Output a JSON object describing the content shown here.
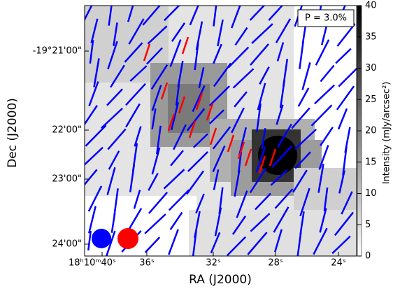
{
  "chart_data": {
    "type": "image",
    "xlabel": "RA (J2000)",
    "ylabel": "Dec (J2000)",
    "xtick_labels": [
      "18ʰ10ᵐ40ˢ",
      "36ˢ",
      "32ˢ",
      "28ˢ",
      "24ˢ"
    ],
    "ytick_labels": [
      "-19°21'00\"",
      "22'00\"",
      "23'00\"",
      "24'00\""
    ],
    "annotation": "P = 3.0%",
    "colorbar": {
      "label": "Intensity (mJy/arcsec²)",
      "lim": [
        0,
        40
      ],
      "ticks": [
        0,
        5,
        10,
        15,
        20,
        25,
        30,
        35,
        40
      ]
    }
  }
}
